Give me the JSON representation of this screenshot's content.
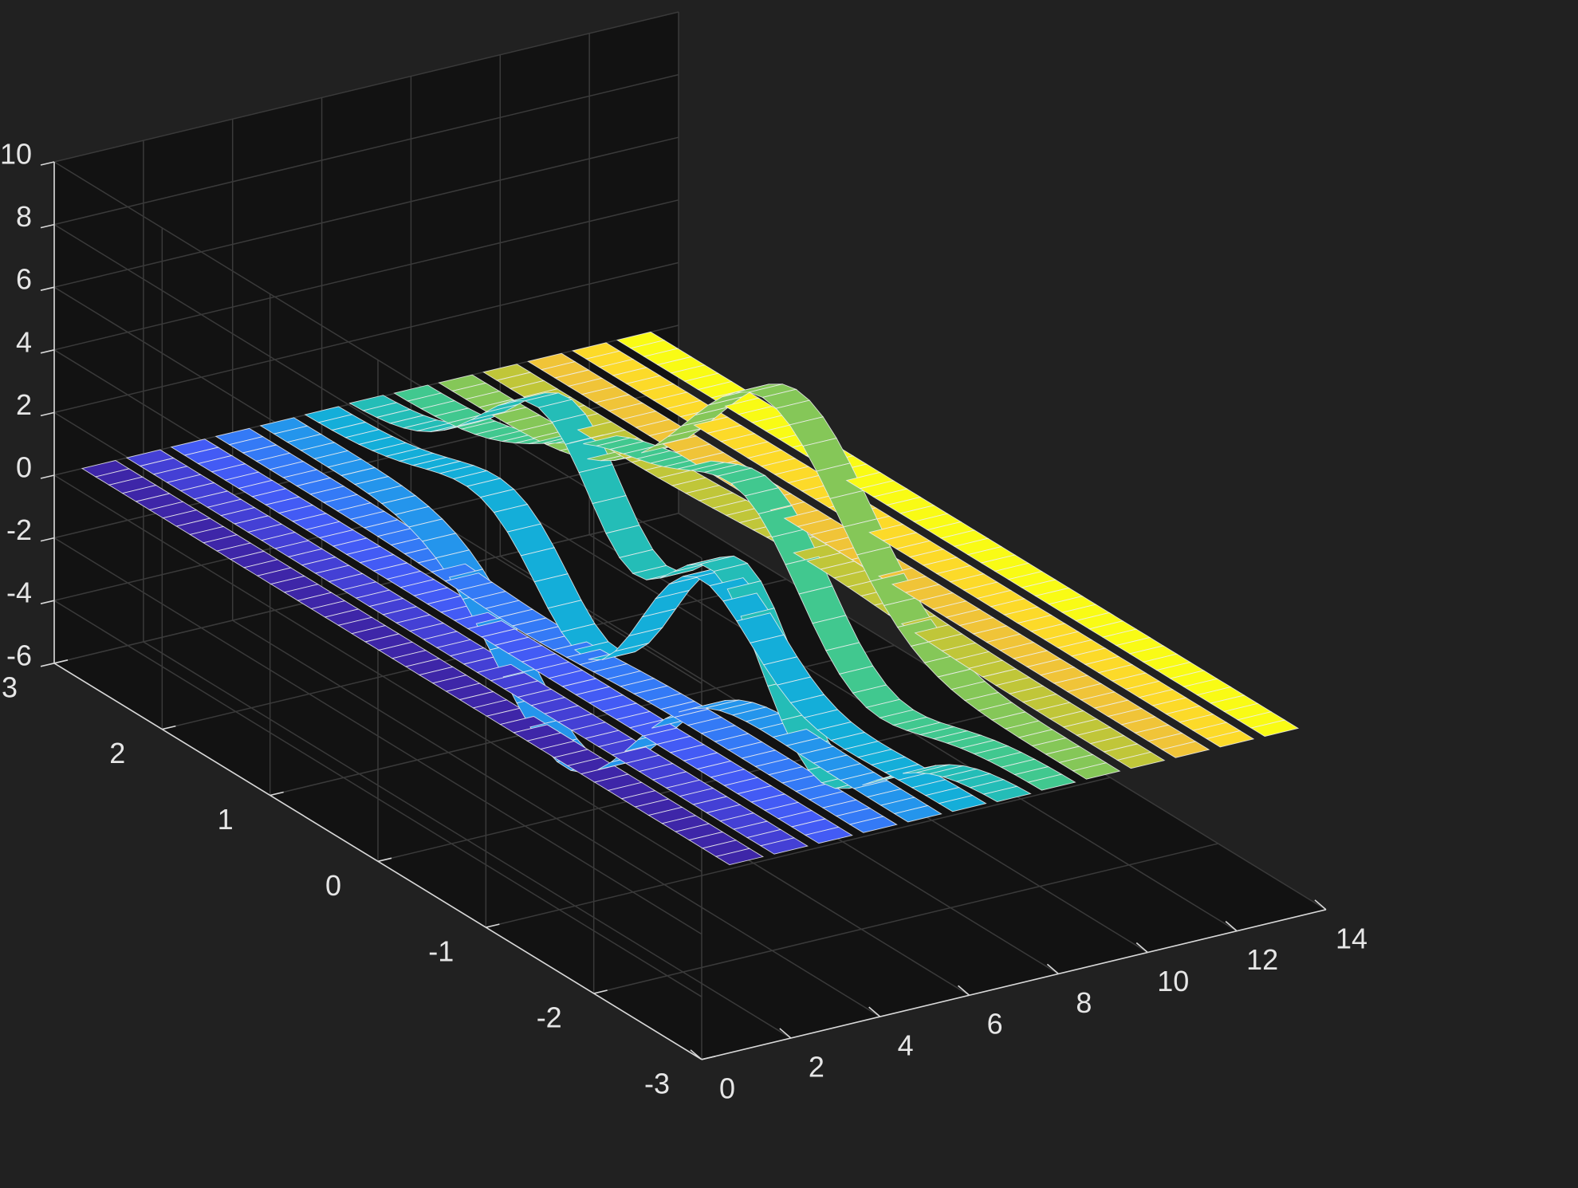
{
  "figure": {
    "background": "#212121",
    "pane_color": "#121212",
    "grid_color": "#3a3a3a",
    "axis_color": "#d9d9d9"
  },
  "chart_data": {
    "type": "ribbon3d",
    "title": "",
    "xlabel": "",
    "ylabel": "",
    "zlabel": "",
    "xlim": [
      0,
      14
    ],
    "ylim": [
      -3,
      3
    ],
    "zlim": [
      -6,
      10
    ],
    "x_ticks": [
      "0",
      "2",
      "4",
      "6",
      "8",
      "10",
      "12",
      "14"
    ],
    "y_ticks": [
      "-3",
      "-2",
      "-1",
      "0",
      "1",
      "2",
      "3"
    ],
    "z_ticks": [
      "-6",
      "-4",
      "-2",
      "0",
      "2",
      "4",
      "6",
      "8",
      "10"
    ],
    "grid": true,
    "ribbon_width": 0.75,
    "y_range": [
      -3,
      3
    ],
    "y_samples": 49,
    "colormap": "parula",
    "series_x": [
      1,
      2,
      3,
      4,
      5,
      6,
      7,
      8,
      9,
      10,
      11,
      12,
      13
    ],
    "source_function": "peaks(y, x - 7)",
    "series_count": 13
  }
}
